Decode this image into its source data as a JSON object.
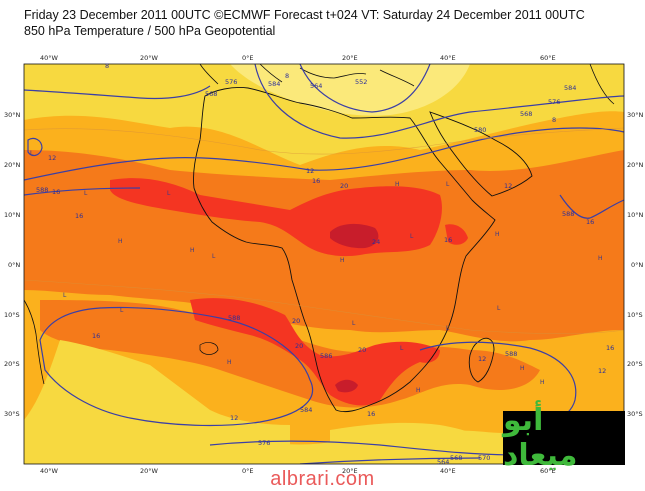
{
  "header": {
    "line1": "Friday 23 December 2011 00UTC ©ECMWF Forecast t+024 VT: Saturday 24 December 2011 00UTC",
    "line2": "850 hPa Temperature / 500 hPa Geopotential"
  },
  "axes": {
    "lon_labels": [
      "40°W",
      "20°W",
      "0°E",
      "20°E",
      "40°E",
      "60°E"
    ],
    "lat_labels": [
      "30°N",
      "20°N",
      "10°N",
      "0°N",
      "10°S",
      "20°S",
      "30°S"
    ]
  },
  "contour_labels": {
    "temperature": [
      "8",
      "8",
      "8",
      "12",
      "16",
      "16",
      "12",
      "16",
      "20",
      "24",
      "20",
      "20",
      "20",
      "16",
      "12",
      "12",
      "16",
      "16",
      "16",
      "12",
      "12",
      "16"
    ],
    "geopotential": [
      "568",
      "576",
      "564",
      "584",
      "552",
      "576",
      "580",
      "568",
      "584",
      "588",
      "588",
      "588",
      "588",
      "586",
      "584",
      "576",
      "564",
      "570",
      "568"
    ]
  },
  "pressure_systems": [
    "L",
    "L",
    "L",
    "L",
    "L",
    "L",
    "L",
    "L",
    "L",
    "L",
    "L",
    "L",
    "H",
    "H",
    "H",
    "H",
    "H",
    "H",
    "H",
    "H",
    "H",
    "H"
  ],
  "colors": {
    "cool": "#f7d940",
    "warm": "#fbb11d",
    "hot": "#f57a1a",
    "very_hot": "#f43522",
    "extreme": "#c81d2b",
    "land_outline": "#111111",
    "geopotential_contour": "#3b3fa6",
    "logo_text": "#3fb93b",
    "watermark": "#ea5a5a"
  },
  "branding": {
    "logo_text": "أبو ميعاد",
    "site": "albrari.com"
  }
}
